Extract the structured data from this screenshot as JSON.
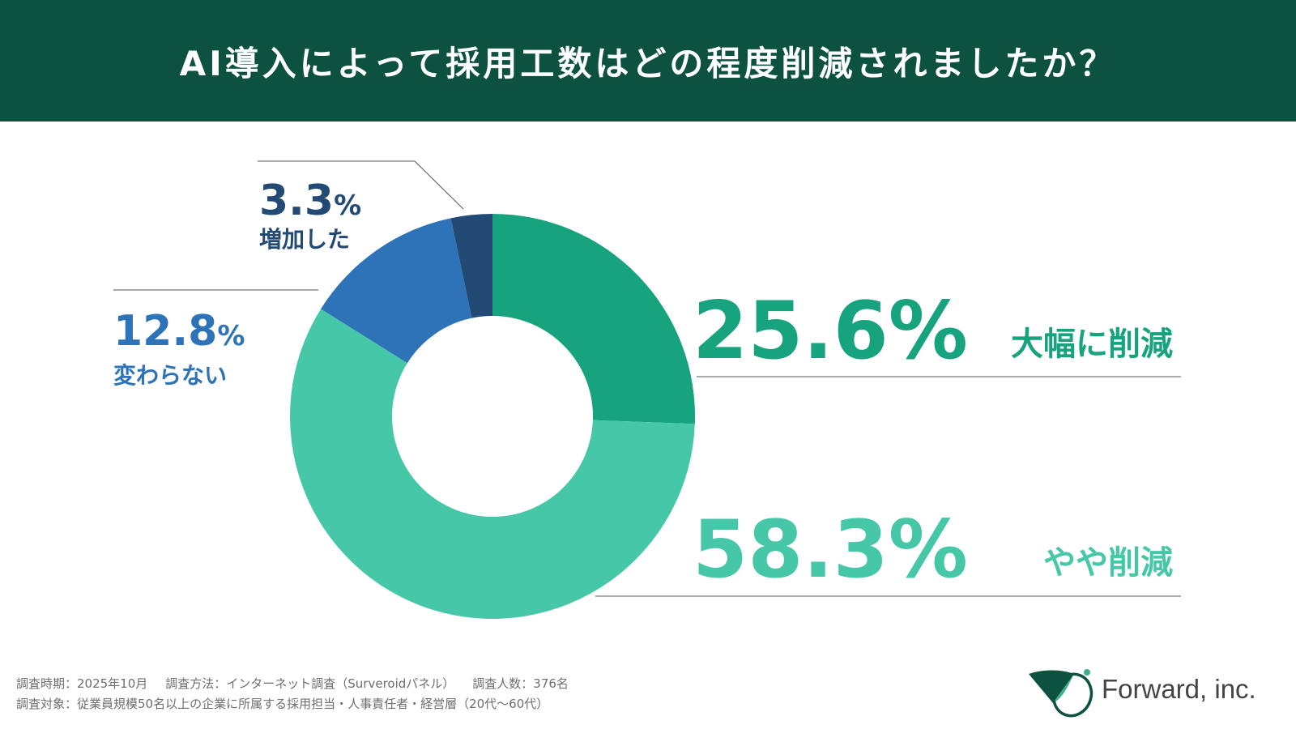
{
  "header": {
    "title": "AI導入によって採用工数はどの程度削減されましたか？"
  },
  "chart_data": {
    "type": "pie",
    "variant": "donut",
    "slices": [
      {
        "label": "大幅に削減",
        "value": 25.6,
        "value_label": "25.6",
        "unit": "%",
        "color": "#17a37e"
      },
      {
        "label": "やや削減",
        "value": 58.3,
        "value_label": "58.3",
        "unit": "%",
        "color": "#46c8a8"
      },
      {
        "label": "変わらない",
        "value": 12.8,
        "value_label": "12.8",
        "unit": "%",
        "color": "#2e73b8"
      },
      {
        "label": "増加した",
        "value": 3.3,
        "value_label": "3.3",
        "unit": "%",
        "color": "#224a74"
      }
    ]
  },
  "footer": {
    "line1": [
      "調査時期：2025年10月",
      "調査方法：インターネット調査（Surveroidパネル）",
      "調査人数：376名"
    ],
    "line2": "調査対象：従業員規模50名以上の企業に所属する採用担当・人事責任者・経営層（20代〜60代）"
  },
  "logo": {
    "text": "Forward, inc.",
    "color": "#0d5240"
  }
}
